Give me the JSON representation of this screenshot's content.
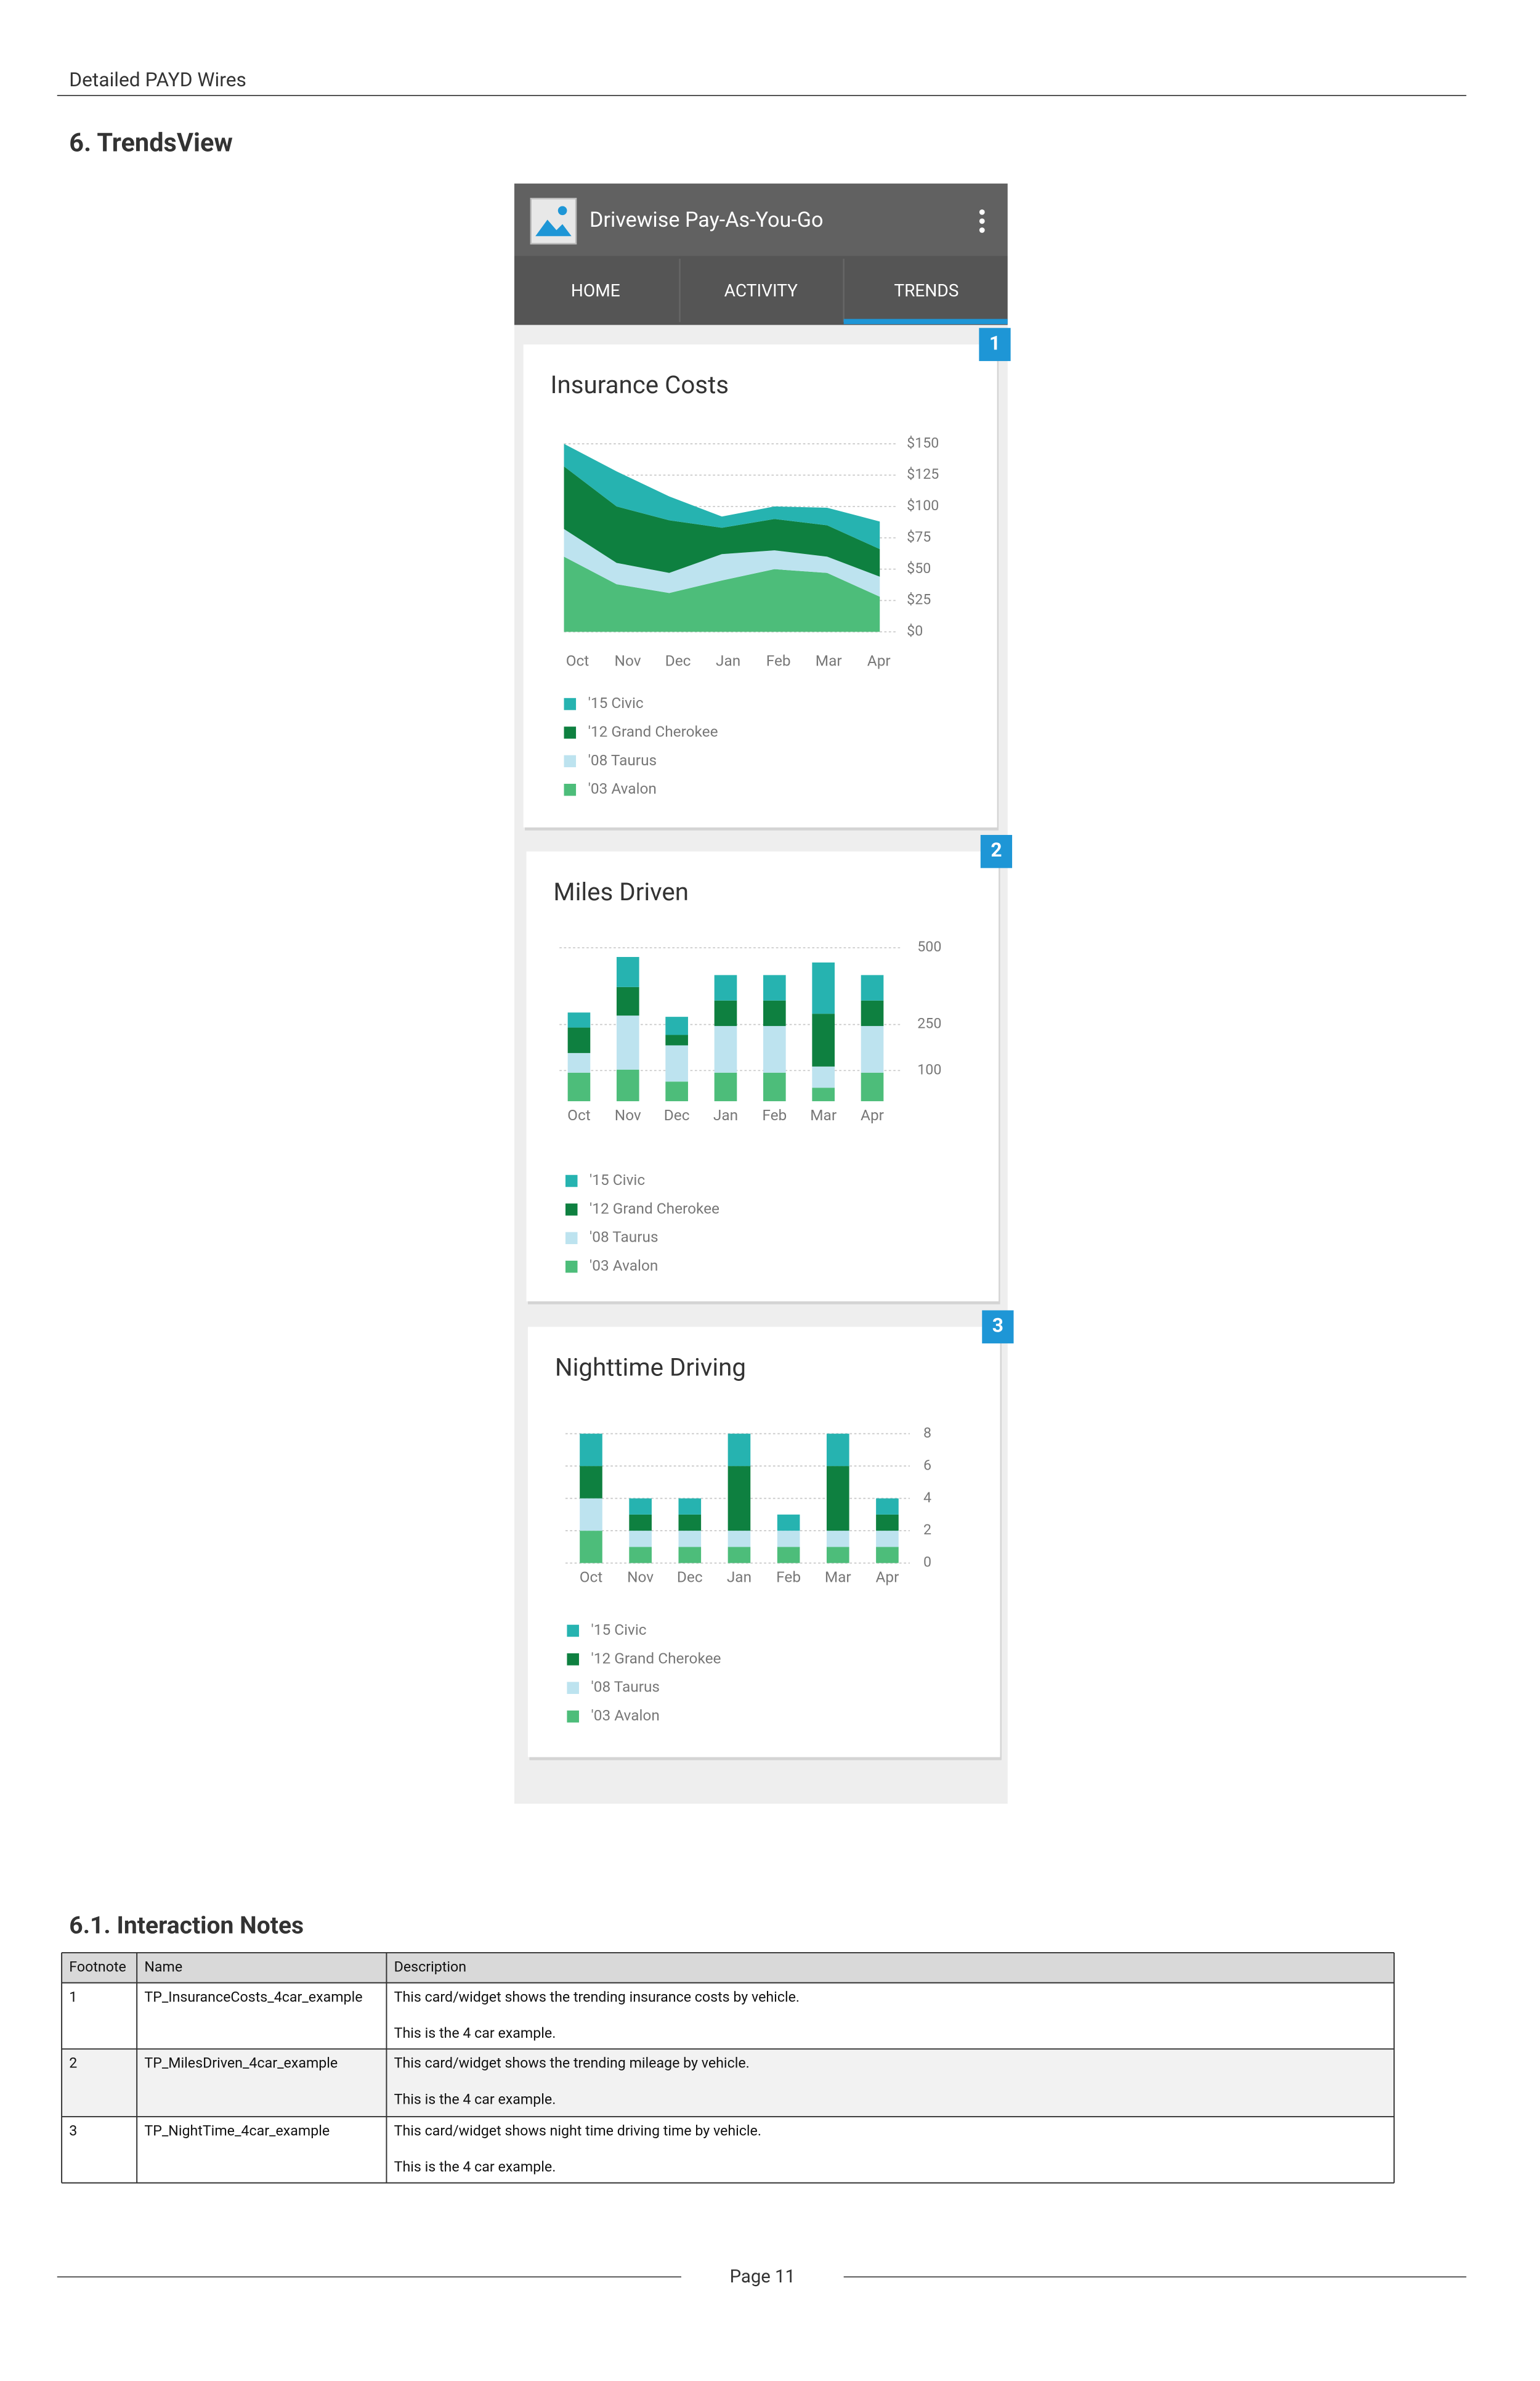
{
  "header": {
    "title": "Detailed PAYD Wires"
  },
  "section_title": "6. TrendsView",
  "app": {
    "title": "Drivewise Pay-As-You-Go",
    "tabs": [
      "HOME",
      "ACTIVITY",
      "TRENDS"
    ]
  },
  "badges": [
    "1",
    "2",
    "3"
  ],
  "chart_data": [
    {
      "type": "area",
      "stacked": true,
      "title": "Insurance Costs",
      "categories": [
        "Oct",
        "Nov",
        "Dec",
        "Jan",
        "Feb",
        "Mar",
        "Apr"
      ],
      "ylim": [
        0,
        150
      ],
      "yticks": [
        {
          "value": 150,
          "label": "$150"
        },
        {
          "value": 125,
          "label": "$125"
        },
        {
          "value": 100,
          "label": "$100"
        },
        {
          "value": 75,
          "label": "$75"
        },
        {
          "value": 50,
          "label": "$50"
        },
        {
          "value": 25,
          "label": "$25"
        },
        {
          "value": 0,
          "label": "$0"
        }
      ],
      "grid": true,
      "series": [
        {
          "name": "'15 Civic",
          "color": "#26b3b0",
          "values": [
            18,
            28,
            19,
            9,
            10,
            14,
            22
          ]
        },
        {
          "name": "'12 Grand Cherokee",
          "color": "#0e8040",
          "values": [
            50,
            45,
            42,
            21,
            25,
            25,
            22
          ]
        },
        {
          "name": "'08 Taurus",
          "color": "#bde3ef",
          "values": [
            22,
            17,
            16,
            21,
            15,
            13,
            16
          ]
        },
        {
          "name": "'03 Avalon",
          "color": "#4dbd7a",
          "values": [
            60,
            38,
            31,
            41,
            50,
            47,
            28
          ]
        }
      ]
    },
    {
      "type": "bar",
      "stacked": true,
      "title": "Miles Driven",
      "categories": [
        "Oct",
        "Nov",
        "Dec",
        "Jan",
        "Feb",
        "Mar",
        "Apr"
      ],
      "ylim": [
        0,
        500
      ],
      "yticks": [
        500,
        250,
        100
      ],
      "grid": true,
      "series": [
        {
          "name": "'15 Civic",
          "color": "#26b3b0",
          "values": [
            49,
            98,
            59,
            83,
            83,
            167,
            83
          ]
        },
        {
          "name": "'12 Grand Cherokee",
          "color": "#0e8040",
          "values": [
            83,
            93,
            34,
            83,
            83,
            172,
            83
          ]
        },
        {
          "name": "'08 Taurus",
          "color": "#bde3ef",
          "values": [
            64,
            176,
            118,
            152,
            152,
            69,
            152
          ]
        },
        {
          "name": "'03 Avalon",
          "color": "#4dbd7a",
          "values": [
            93,
            103,
            64,
            93,
            93,
            44,
            93
          ]
        }
      ]
    },
    {
      "type": "bar",
      "stacked": true,
      "title": "Nighttime Driving",
      "categories": [
        "Oct",
        "Nov",
        "Dec",
        "Jan",
        "Feb",
        "Mar",
        "Apr"
      ],
      "ylim": [
        0,
        8
      ],
      "yticks": [
        8,
        6,
        4,
        2,
        0
      ],
      "grid": true,
      "series": [
        {
          "name": "'15 Civic",
          "color": "#26b3b0",
          "values": [
            2,
            1,
            1,
            2,
            1,
            2,
            1
          ]
        },
        {
          "name": "'12 Grand Cherokee",
          "color": "#0e8040",
          "values": [
            2,
            1,
            1,
            4,
            0,
            4,
            1
          ]
        },
        {
          "name": "'08 Taurus",
          "color": "#bde3ef",
          "values": [
            2,
            1,
            1,
            1,
            1,
            1,
            1
          ]
        },
        {
          "name": "'03 Avalon",
          "color": "#4dbd7a",
          "values": [
            2,
            1,
            1,
            1,
            1,
            1,
            1
          ]
        }
      ]
    }
  ],
  "notes_title": "6.1. Interaction Notes",
  "table": {
    "columns": [
      "Footnote",
      "Name",
      "Description"
    ],
    "rows": [
      {
        "footnote": "1",
        "name": "TP_InsuranceCosts_4car_example",
        "description": [
          "This card/widget shows the trending insurance costs by vehicle.",
          "This is the 4 car example."
        ]
      },
      {
        "footnote": "2",
        "name": "TP_MilesDriven_4car_example",
        "description": [
          "This card/widget shows the trending mileage by vehicle.",
          "This is the 4 car example."
        ]
      },
      {
        "footnote": "3",
        "name": "TP_NightTime_4car_example",
        "description": [
          "This card/widget shows night time driving time by vehicle.",
          "This is the 4 car example."
        ]
      }
    ]
  },
  "footer": {
    "page": "Page 11"
  }
}
